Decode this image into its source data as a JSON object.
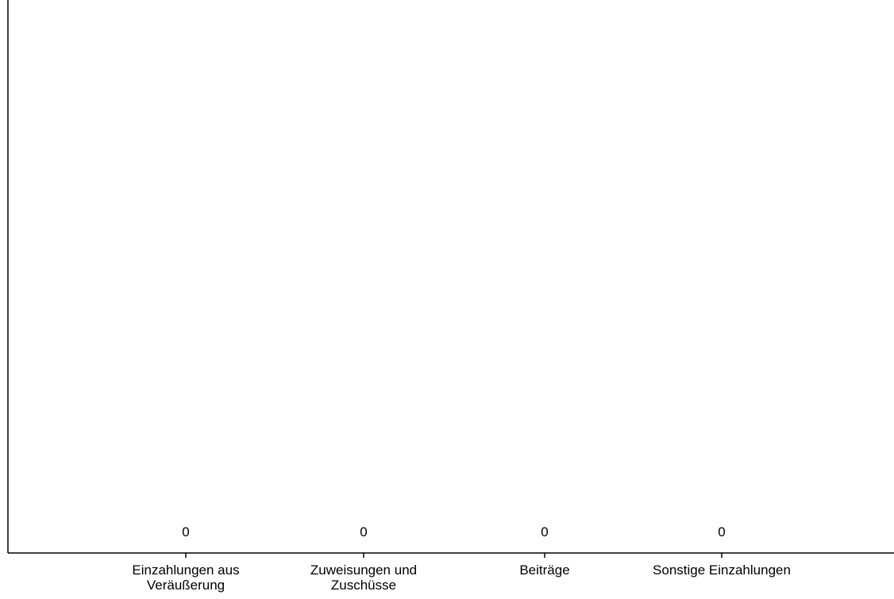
{
  "chart_data": {
    "type": "bar",
    "categories": [
      "Einzahlungen aus Veräußerung",
      "Zuweisungen und Zuschüsse",
      "Beiträge",
      "Sonstige Einzahlungen"
    ],
    "values": [
      0,
      0,
      0,
      0
    ],
    "value_labels": [
      "0",
      "0",
      "0",
      "0"
    ],
    "title": "",
    "xlabel": "",
    "ylabel": "",
    "grid": false,
    "axis_color": "#000000",
    "bar_color": "#4f81bd"
  }
}
